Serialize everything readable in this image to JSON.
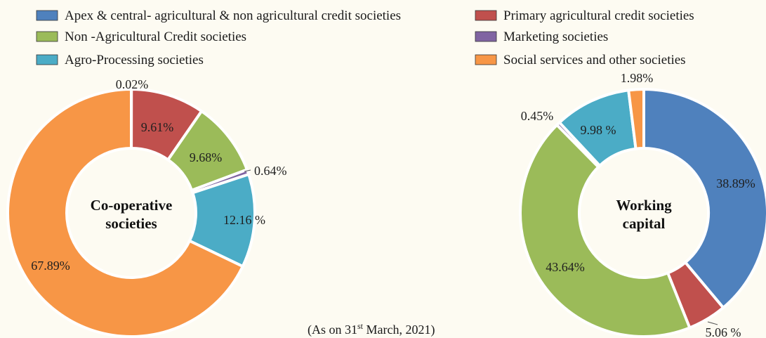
{
  "legend": [
    {
      "name": "Apex & central- agricultural & non agricultural credit societies",
      "color": "#4f81bd"
    },
    {
      "name": "Primary agricultural credit societies",
      "color": "#c0504d"
    },
    {
      "name": "Non -Agricultural Credit societies",
      "color": "#9bbb59"
    },
    {
      "name": "Marketing societies",
      "color": "#8064a2"
    },
    {
      "name": "Agro-Processing societies",
      "color": "#4bacc6"
    },
    {
      "name": "Social services and other societies",
      "color": "#f79646"
    }
  ],
  "footnote": {
    "prefix": "(As on 31",
    "sup": "st",
    "suffix": " March, 2021)"
  },
  "chart_data": [
    {
      "type": "pie",
      "donut": true,
      "center_label": [
        "Co-operative",
        "societies"
      ],
      "categories": [
        "Apex & central- agricultural & non agricultural credit societies",
        "Primary agricultural credit societies",
        "Non -Agricultural Credit societies",
        "Marketing societies",
        "Agro-Processing societies",
        "Social services and other societies"
      ],
      "values": [
        0.02,
        9.61,
        9.68,
        0.64,
        12.16,
        67.89
      ],
      "value_labels": [
        "0.02%",
        "9.61%",
        "9.68%",
        "0.64%",
        "12.16 %",
        "67.89%"
      ],
      "colors": [
        "#4f81bd",
        "#c0504d",
        "#9bbb59",
        "#8064a2",
        "#4bacc6",
        "#f79646"
      ]
    },
    {
      "type": "pie",
      "donut": true,
      "center_label": [
        "Working",
        "capital"
      ],
      "categories": [
        "Apex & central- agricultural & non agricultural credit societies",
        "Primary agricultural credit societies",
        "Non -Agricultural Credit societies",
        "Marketing societies",
        "Agro-Processing societies",
        "Social services and other societies"
      ],
      "values": [
        38.89,
        5.06,
        43.64,
        0.45,
        9.98,
        1.98
      ],
      "value_labels": [
        "38.89%",
        "5.06 %",
        "43.64%",
        "0.45%",
        "9.98 %",
        "1.98%"
      ],
      "colors": [
        "#4f81bd",
        "#c0504d",
        "#9bbb59",
        "#8064a2",
        "#4bacc6",
        "#f79646"
      ]
    }
  ]
}
